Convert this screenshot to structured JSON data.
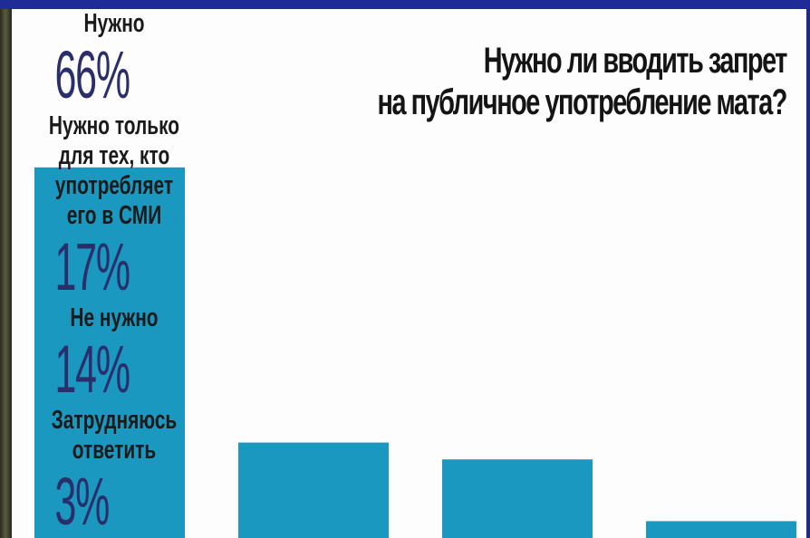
{
  "chart_data": {
    "type": "bar",
    "title": "Нужно ли вводить запрет\nна публичное употребление мата?",
    "categories": [
      "Нужно",
      "Нужно только\nдля тех, кто\nупотребляет\nего в СМИ",
      "Не нужно",
      "Затрудняюсь\nответить"
    ],
    "values": [
      66,
      17,
      14,
      3
    ],
    "value_labels": [
      "66%",
      "17%",
      "14%",
      "3%"
    ],
    "color": "#1b98c0"
  }
}
